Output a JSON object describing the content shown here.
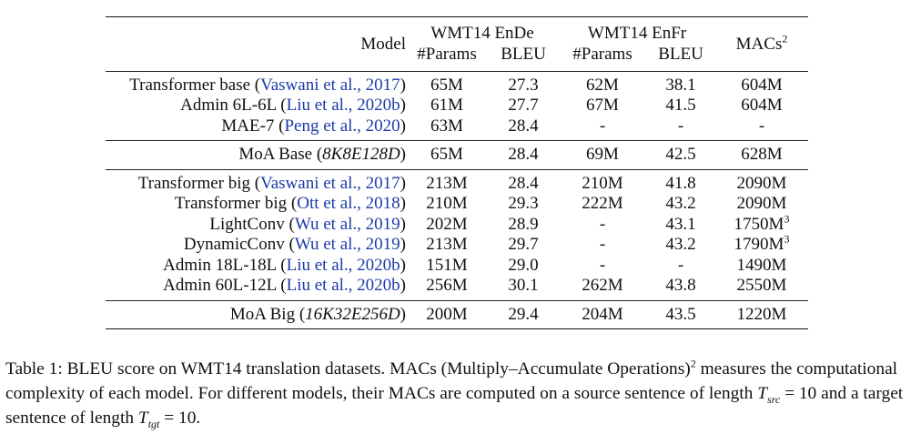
{
  "header": {
    "model_label": "Model",
    "group_ende": "WMT14 EnDe",
    "group_enfr": "WMT14 EnFr",
    "macs_label": "MACs",
    "macs_sup": "2",
    "params_ende": "#Params",
    "bleu_ende": "BLEU",
    "params_enfr": "#Params",
    "bleu_enfr": "BLEU"
  },
  "rows": [
    {
      "name": "Transformer base",
      "cite": "Vaswani et al., 2017",
      "p1": "65M",
      "b1": "27.3",
      "p2": "62M",
      "b2": "38.1",
      "macs": "604M",
      "macs_sup": ""
    },
    {
      "name": "Admin 6L-6L",
      "cite": "Liu et al., 2020b",
      "p1": "61M",
      "b1": "27.7",
      "p2": "67M",
      "b2": "41.5",
      "macs": "604M",
      "macs_sup": ""
    },
    {
      "name": "MAE-7",
      "cite": "Peng et al., 2020",
      "p1": "63M",
      "b1": "28.4",
      "p2": "-",
      "b2": "-",
      "macs": "-",
      "macs_sup": ""
    },
    {
      "name": "MoA Base",
      "config": "8K8E128D",
      "p1": "65M",
      "b1": "28.4",
      "p2": "69M",
      "b2": "42.5",
      "macs": "628M",
      "macs_sup": ""
    },
    {
      "name": "Transformer big",
      "cite": "Vaswani et al., 2017",
      "p1": "213M",
      "b1": "28.4",
      "p2": "210M",
      "b2": "41.8",
      "macs": "2090M",
      "macs_sup": ""
    },
    {
      "name": "Transformer big",
      "cite": "Ott et al., 2018",
      "p1": "210M",
      "b1": "29.3",
      "p2": "222M",
      "b2": "43.2",
      "macs": "2090M",
      "macs_sup": ""
    },
    {
      "name": "LightConv",
      "cite": "Wu et al., 2019",
      "p1": "202M",
      "b1": "28.9",
      "p2": "-",
      "b2": "43.1",
      "macs": "1750M",
      "macs_sup": "3"
    },
    {
      "name": "DynamicConv",
      "cite": "Wu et al., 2019",
      "p1": "213M",
      "b1": "29.7",
      "p2": "-",
      "b2": "43.2",
      "macs": "1790M",
      "macs_sup": "3"
    },
    {
      "name": "Admin 18L-18L",
      "cite": "Liu et al., 2020b",
      "p1": "151M",
      "b1": "29.0",
      "p2": "-",
      "b2": "-",
      "macs": "1490M",
      "macs_sup": ""
    },
    {
      "name": "Admin 60L-12L",
      "cite": "Liu et al., 2020b",
      "p1": "256M",
      "b1": "30.1",
      "p2": "262M",
      "b2": "43.8",
      "macs": "2550M",
      "macs_sup": ""
    },
    {
      "name": "MoA Big",
      "config": "16K32E256D",
      "p1": "200M",
      "b1": "29.4",
      "p2": "204M",
      "b2": "43.5",
      "macs": "1220M",
      "macs_sup": ""
    }
  ],
  "caption": {
    "part1": "Table 1: BLEU score on WMT14 translation datasets. MACs (Multiply–Accumulate Operations)",
    "sup": "2",
    "part2": " measures the computational complexity of each model. For different models, their MACs are computed on a source sentence of length ",
    "tsrc_base": "T",
    "tsrc_sub": "src",
    "eq1": " = 10 and a target sentence of length ",
    "ttgt_base": "T",
    "ttgt_sub": "tgt",
    "eq2": " = 10."
  }
}
